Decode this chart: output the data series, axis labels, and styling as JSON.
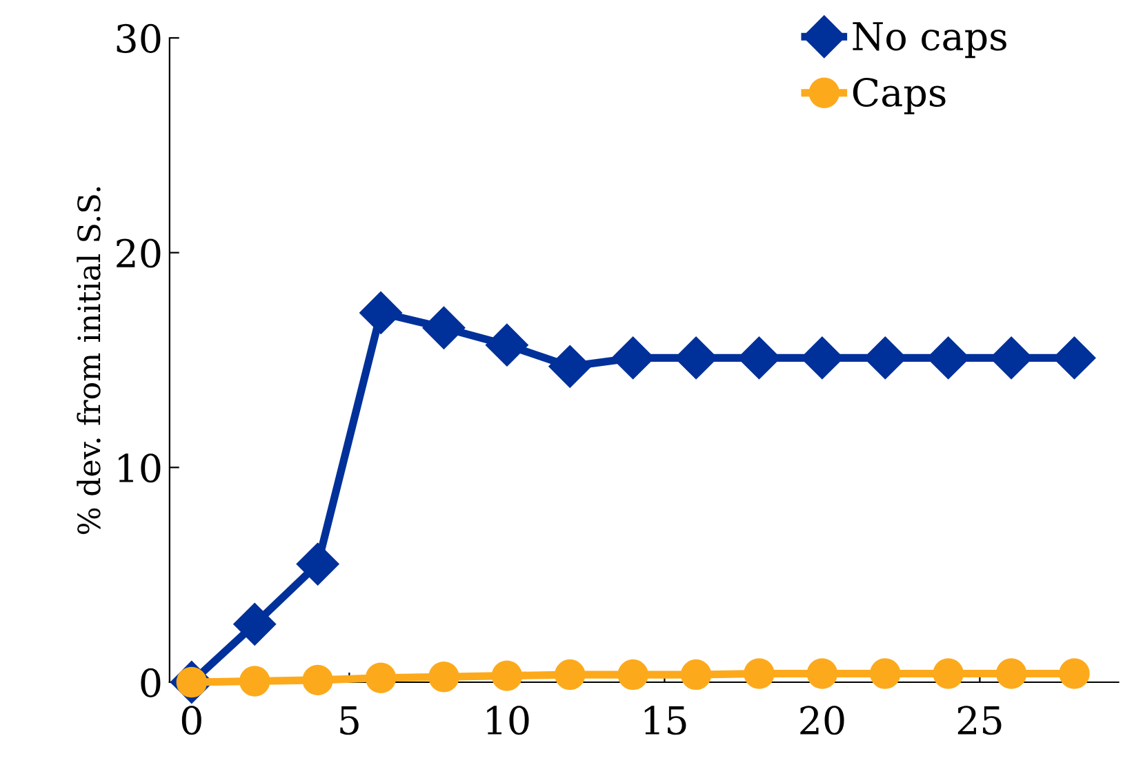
{
  "chart_data": {
    "type": "line",
    "ylabel": "% dev. from initial S.S.",
    "x": [
      0,
      2,
      4,
      6,
      8,
      10,
      12,
      14,
      16,
      18,
      20,
      22,
      24,
      26,
      28
    ],
    "series": [
      {
        "name": "No caps",
        "color": "#00309a",
        "marker": "diamond",
        "values": [
          0,
          2.7,
          5.5,
          17.2,
          16.5,
          15.7,
          14.7,
          15.1,
          15.1,
          15.1,
          15.1,
          15.1,
          15.1,
          15.1,
          15.1
        ]
      },
      {
        "name": "Caps",
        "color": "#fcaa1c",
        "marker": "circle",
        "values": [
          0,
          0.05,
          0.1,
          0.2,
          0.25,
          0.3,
          0.35,
          0.35,
          0.35,
          0.4,
          0.4,
          0.4,
          0.4,
          0.4,
          0.4
        ]
      }
    ],
    "xlim": [
      -0.7,
      29.4
    ],
    "xticks": [
      0,
      5,
      10,
      15,
      20,
      25
    ],
    "ylim": [
      0,
      30
    ],
    "yticks": [
      0,
      10,
      20,
      30
    ],
    "grid": false,
    "legend": "top right",
    "line_style": "solid"
  }
}
